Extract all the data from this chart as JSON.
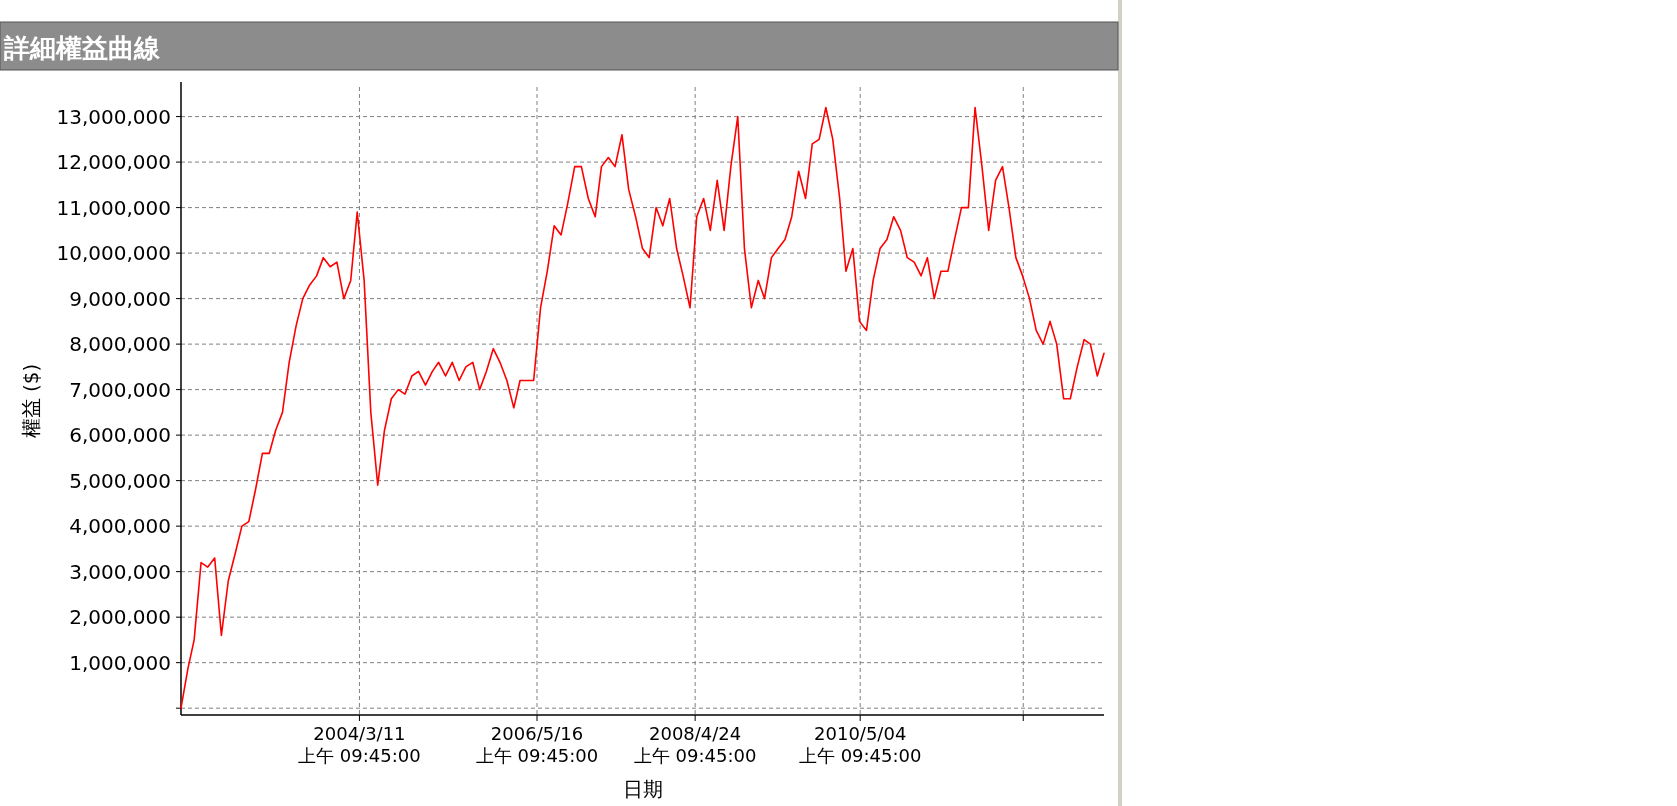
{
  "chart_data": {
    "type": "line",
    "title": "詳細權益曲線",
    "xlabel": "日期",
    "ylabel": "權益 ($)",
    "x": [
      "2002-01",
      "2002-02",
      "2002-03",
      "2002-04",
      "2002-05",
      "2002-06",
      "2002-07",
      "2002-08",
      "2002-09",
      "2002-10",
      "2002-11",
      "2002-12",
      "2003-01",
      "2003-02",
      "2003-03",
      "2003-04",
      "2003-05",
      "2003-06",
      "2003-07",
      "2003-08",
      "2003-09",
      "2003-10",
      "2003-11",
      "2003-12",
      "2004-01",
      "2004-02",
      "2004-03",
      "2004-04",
      "2004-05",
      "2004-06",
      "2004-07",
      "2004-08",
      "2004-09",
      "2004-10",
      "2004-11",
      "2004-12",
      "2005-01",
      "2005-02",
      "2005-03",
      "2005-04",
      "2005-05",
      "2005-06",
      "2005-07",
      "2005-08",
      "2005-09",
      "2005-10",
      "2005-11",
      "2005-12",
      "2006-01",
      "2006-02",
      "2006-03",
      "2006-04",
      "2006-05",
      "2006-06",
      "2006-07",
      "2006-08",
      "2006-09",
      "2006-10",
      "2006-11",
      "2006-12",
      "2007-01",
      "2007-02",
      "2007-03",
      "2007-04",
      "2007-05",
      "2007-06",
      "2007-07",
      "2007-08",
      "2007-09",
      "2007-10",
      "2007-11",
      "2007-12",
      "2008-01",
      "2008-02",
      "2008-03",
      "2008-04",
      "2008-05",
      "2008-06",
      "2008-07",
      "2008-08",
      "2008-09",
      "2008-10",
      "2008-11",
      "2008-12",
      "2009-01",
      "2009-02",
      "2009-03",
      "2009-04",
      "2009-05",
      "2009-06",
      "2009-07",
      "2009-08",
      "2009-09",
      "2009-10",
      "2009-11",
      "2009-12",
      "2010-01",
      "2010-02",
      "2010-03",
      "2010-04",
      "2010-05",
      "2010-06",
      "2010-07",
      "2010-08",
      "2010-09",
      "2010-10",
      "2010-11",
      "2010-12",
      "2011-01",
      "2011-02",
      "2011-03",
      "2011-04",
      "2011-05",
      "2011-06",
      "2011-07",
      "2011-08",
      "2011-09",
      "2011-10",
      "2011-11",
      "2011-12",
      "2012-01",
      "2012-02",
      "2012-03",
      "2012-04",
      "2012-05",
      "2012-06",
      "2012-07",
      "2012-08",
      "2012-09",
      "2012-10",
      "2012-11",
      "2012-12",
      "2013-01",
      "2013-02",
      "2013-03",
      "2013-04",
      "2013-05"
    ],
    "series": [
      {
        "color": "#ff0000",
        "values": [
          0,
          870000,
          1500000,
          3200000,
          3100000,
          3300000,
          1600000,
          2800000,
          3400000,
          4000000,
          4100000,
          4800000,
          5600000,
          5600000,
          6100000,
          6500000,
          7600000,
          8400000,
          9000000,
          9300000,
          9500000,
          9900000,
          9700000,
          9800000,
          9000000,
          9400000,
          10900000,
          9400000,
          6500000,
          4900000,
          6100000,
          6800000,
          7000000,
          6900000,
          7300000,
          7400000,
          7100000,
          7400000,
          7600000,
          7300000,
          7600000,
          7200000,
          7500000,
          7600000,
          7000000,
          7400000,
          7900000,
          7600000,
          7200000,
          6600000,
          7200000,
          7200000,
          7200000,
          8800000,
          9600000,
          10600000,
          10400000,
          11100000,
          11900000,
          11900000,
          11200000,
          10800000,
          11900000,
          12100000,
          11900000,
          12600000,
          11400000,
          10800000,
          10100000,
          9900000,
          11000000,
          10600000,
          11200000,
          10100000,
          9500000,
          8800000,
          10800000,
          11200000,
          10500000,
          11600000,
          10500000,
          11900000,
          13000000,
          10100000,
          8800000,
          9400000,
          9000000,
          9900000,
          10100000,
          10300000,
          10800000,
          11800000,
          11200000,
          12400000,
          12500000,
          13200000,
          12500000,
          11200000,
          9600000,
          10100000,
          8500000,
          8300000,
          9400000,
          10100000,
          10300000,
          10800000,
          10500000,
          9900000,
          9800000,
          9500000,
          9900000,
          9000000,
          9600000,
          9600000,
          10300000,
          11000000,
          11000000,
          13200000,
          11900000,
          10500000,
          11600000,
          11900000,
          11000000,
          9900000,
          9500000,
          9000000,
          8300000,
          8000000,
          8500000,
          8000000,
          6800000,
          6800000,
          7500000,
          8100000,
          8000000,
          7300000,
          7800000
        ]
      }
    ],
    "xlim": [
      "2002-01",
      "2013-05"
    ],
    "xticks": [
      {
        "value": "2004-03-11",
        "label": "2004/3/11 上午 09:45:00"
      },
      {
        "value": "2006-05-16",
        "label": "2006/5/16 上午 09:45:00"
      },
      {
        "value": "2008-04-24",
        "label": "2008/4/24 上午 09:45:00"
      },
      {
        "value": "2010-05-04",
        "label": "2010/5/04 上午 09:45:00"
      },
      {
        "value": "2012-05-04",
        "label": null
      }
    ],
    "ylim": [
      -150000,
      13650000
    ],
    "yticks": [
      {
        "value": 0,
        "label": null
      },
      {
        "value": 1000000,
        "label": "1,000,000"
      },
      {
        "value": 2000000,
        "label": "2,000,000"
      },
      {
        "value": 3000000,
        "label": "3,000,000"
      },
      {
        "value": 4000000,
        "label": "4,000,000"
      },
      {
        "value": 5000000,
        "label": "5,000,000"
      },
      {
        "value": 6000000,
        "label": "6,000,000"
      },
      {
        "value": 7000000,
        "label": "7,000,000"
      },
      {
        "value": 8000000,
        "label": "8,000,000"
      },
      {
        "value": 9000000,
        "label": "9,000,000"
      },
      {
        "value": 10000000,
        "label": "10,000,000"
      },
      {
        "value": 11000000,
        "label": "11,000,000"
      },
      {
        "value": 12000000,
        "label": "12,000,000"
      },
      {
        "value": 13000000,
        "label": "13,000,000"
      }
    ],
    "grid": true,
    "marker": "none",
    "line_style": "solid"
  }
}
